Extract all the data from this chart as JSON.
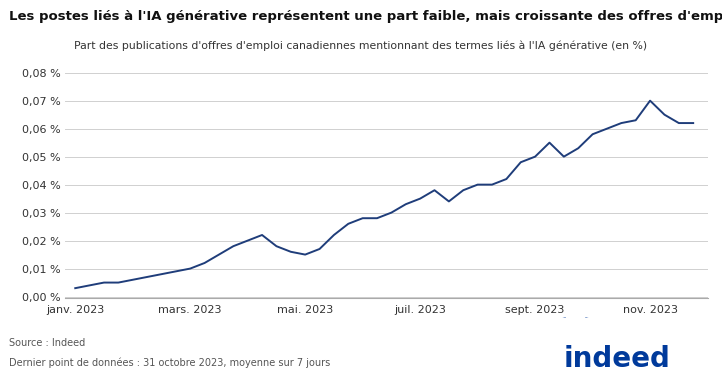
{
  "title": "Les postes liés à l'IA générative représentent une part faible, mais croissante des offres d'emploi",
  "subtitle": "Part des publications d'offres d'emploi canadiennes mentionnant des termes liés à l'IA générative (en %)",
  "source_line1": "Source : Indeed",
  "source_line2": "Dernier point de données : 31 octobre 2023, moyenne sur 7 jours",
  "line_color": "#1f3d7a",
  "background_color": "#ffffff",
  "ytick_labels": [
    "0,00 %",
    "0,01 %",
    "0,02 %",
    "0,03 %",
    "0,04 %",
    "0,05 %",
    "0,06 %",
    "0,07 %",
    "0,08 %"
  ],
  "xtick_labels": [
    "janv. 2023",
    "mars. 2023",
    "mai. 2023",
    "juil. 2023",
    "sept. 2023",
    "nov. 2023"
  ],
  "indeed_color": "#003a9b",
  "x_values": [
    0,
    7,
    14,
    21,
    28,
    35,
    42,
    49,
    56,
    63,
    70,
    77,
    84,
    91,
    98,
    105,
    112,
    119,
    126,
    133,
    140,
    147,
    154,
    161,
    168,
    175,
    182,
    189,
    196,
    203,
    210,
    217,
    224,
    231,
    238,
    245,
    252,
    259,
    266,
    273,
    280,
    287,
    294,
    301
  ],
  "y_values": [
    3e-05,
    4e-05,
    5e-05,
    5e-05,
    6e-05,
    7e-05,
    8e-05,
    9e-05,
    0.0001,
    0.00012,
    0.00015,
    0.00018,
    0.0002,
    0.00022,
    0.00018,
    0.00016,
    0.00015,
    0.00017,
    0.00022,
    0.00026,
    0.00028,
    0.00028,
    0.0003,
    0.00033,
    0.00035,
    0.00038,
    0.00034,
    0.00038,
    0.0004,
    0.0004,
    0.00042,
    0.00048,
    0.0005,
    0.00055,
    0.0005,
    0.00053,
    0.00058,
    0.0006,
    0.00062,
    0.00063,
    0.0007,
    0.00065,
    0.00062,
    0.00062
  ]
}
